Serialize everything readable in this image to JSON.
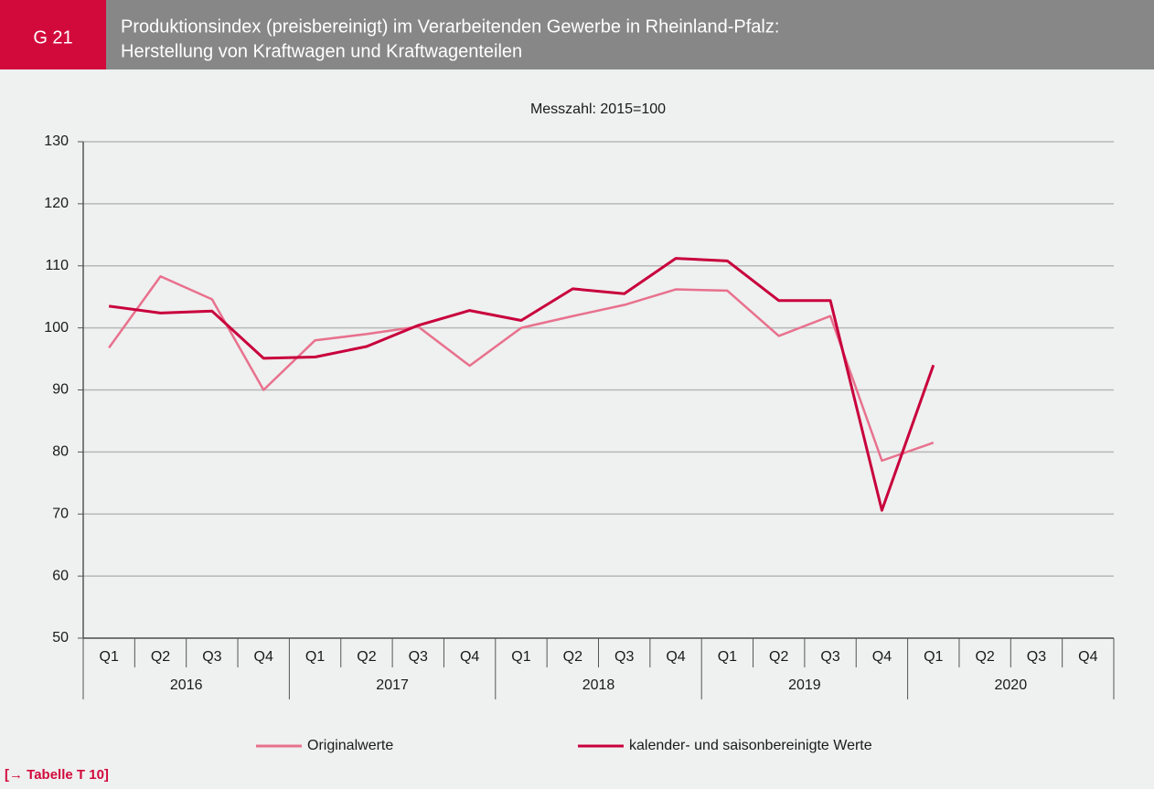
{
  "header": {
    "badge": "G 21",
    "title_lines": [
      "Produktionsindex (preisbereinigt) im  Verarbeitenden Gewerbe in Rheinland-Pfalz:",
      "Herstellung von Kraftwagen und Kraftwagenteilen"
    ]
  },
  "chart_data": {
    "type": "line",
    "subtitle": "Messzahl: 2015=100",
    "categories": [
      "Q1",
      "Q2",
      "Q3",
      "Q4",
      "Q1",
      "Q2",
      "Q3",
      "Q4",
      "Q1",
      "Q2",
      "Q3",
      "Q4",
      "Q1",
      "Q2",
      "Q3",
      "Q4",
      "Q1",
      "Q2",
      "Q3",
      "Q4"
    ],
    "groups": [
      "2016",
      "2017",
      "2018",
      "2019",
      "2020"
    ],
    "series": [
      {
        "name": "Originalwerte",
        "color": "#e8718d",
        "values": [
          96.8,
          108.3,
          104.6,
          90.0,
          98.0,
          99.0,
          100.2,
          93.9,
          100.0,
          101.9,
          103.7,
          106.2,
          106.0,
          98.7,
          101.9,
          78.6,
          81.5,
          null,
          null,
          null
        ]
      },
      {
        "name": "kalender- und saisonbereinigte Werte",
        "color": "#c8003c",
        "values": [
          103.5,
          102.4,
          102.7,
          95.1,
          95.3,
          97.0,
          100.4,
          102.8,
          101.2,
          106.3,
          105.5,
          111.2,
          110.8,
          104.4,
          104.4,
          70.6,
          94.0,
          null,
          null,
          null
        ]
      }
    ],
    "ylim": [
      50,
      130
    ],
    "yticks": [
      50,
      60,
      70,
      80,
      90,
      100,
      110,
      120,
      130
    ],
    "grid": true,
    "legend": "bottom"
  },
  "footer": {
    "link": "[→ Tabelle T 10]"
  }
}
